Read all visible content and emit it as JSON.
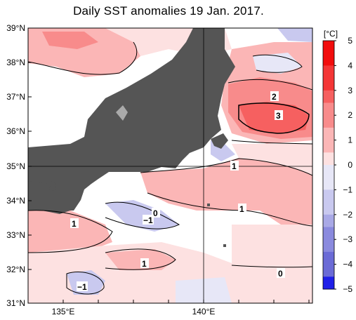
{
  "title": "Daily SST anomalies 19 Jan. 2017.",
  "colorbar": {
    "unit": "[°C]",
    "ticks": [
      "5",
      "4",
      "3",
      "2",
      "1",
      "0",
      "−1",
      "−2",
      "−3",
      "−4",
      "−5"
    ],
    "colors": {
      "plus5": "#f20d0d",
      "plus4": "#f43636",
      "plus3": "#f66060",
      "plus2": "#f88b8b",
      "plus1": "#fbb6b6",
      "plus0": "#fde1e1",
      "minus0": "#e7e7f7",
      "minus1": "#c9c9ef",
      "minus2": "#a9a9e6",
      "minus3": "#8a8ade",
      "minus4": "#6b6bd6",
      "minus5": "#1f1fe8"
    }
  },
  "axes": {
    "lat_labels": [
      "39°N",
      "38°N",
      "37°N",
      "36°N",
      "35°N",
      "34°N",
      "33°N",
      "32°N",
      "31°N"
    ],
    "lon_labels": [
      "135°E",
      "140°E"
    ]
  },
  "contour_labels": [
    "2",
    "3",
    "1",
    "1",
    "0",
    "−1",
    "1",
    "1",
    "0",
    "−1"
  ],
  "colors": {
    "land": "#555555",
    "lake": "#aaaaaa",
    "frame": "#000000"
  }
}
